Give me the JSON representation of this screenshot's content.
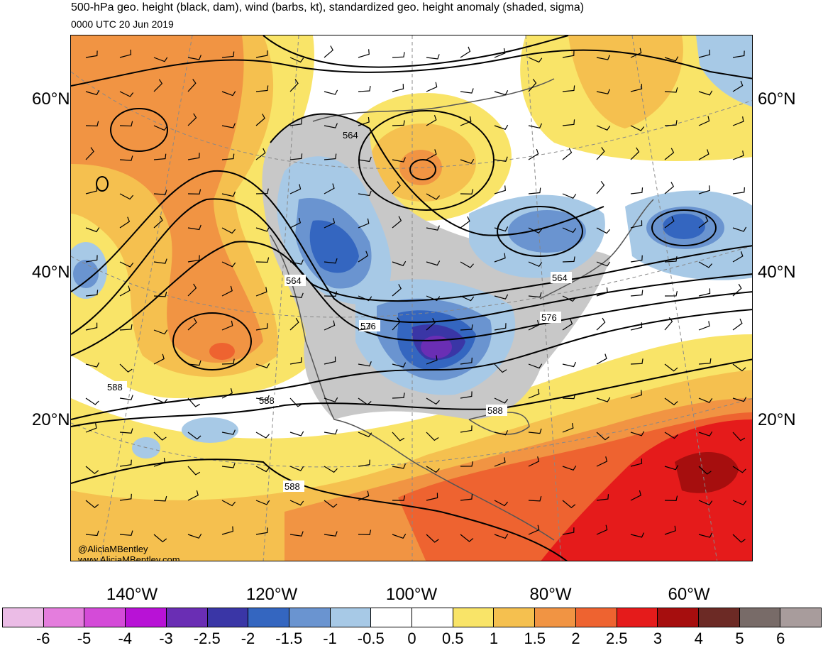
{
  "header": {
    "title": "500-hPa geo. height (black, dam), wind (barbs, kt), standardized geo. height anomaly (shaded, sigma)",
    "valid_time": "0000 UTC 20 Jun 2019"
  },
  "map": {
    "lat_labels": [
      "60°N",
      "40°N",
      "20°N"
    ],
    "lon_labels": [
      "140°W",
      "120°W",
      "100°W",
      "80°W",
      "60°W"
    ],
    "contour_labels": [
      "564",
      "564",
      "576",
      "564",
      "576",
      "588",
      "588",
      "588",
      "588"
    ],
    "credit_handle": "@AliciaMBentley",
    "credit_url": "www.AliciaMBentley.com"
  },
  "colorbar": {
    "colors": [
      "#ebbce6",
      "#e47ddd",
      "#d44bd8",
      "#b812d6",
      "#6a2eb4",
      "#3a36a6",
      "#3466c0",
      "#6a94d0",
      "#a7c9e6",
      "#ffffff",
      "#ffffff",
      "#f9e468",
      "#f5c04f",
      "#f19443",
      "#ee6330",
      "#e51b1b",
      "#a60e0e",
      "#6c2a25",
      "#786b68",
      "#a89c9c"
    ],
    "ticks": [
      "-6",
      "-5",
      "-4",
      "-3",
      "-2.5",
      "-2",
      "-1.5",
      "-1",
      "-0.5",
      "0",
      "0.5",
      "1",
      "1.5",
      "2",
      "2.5",
      "3",
      "4",
      "5",
      "6"
    ]
  }
}
